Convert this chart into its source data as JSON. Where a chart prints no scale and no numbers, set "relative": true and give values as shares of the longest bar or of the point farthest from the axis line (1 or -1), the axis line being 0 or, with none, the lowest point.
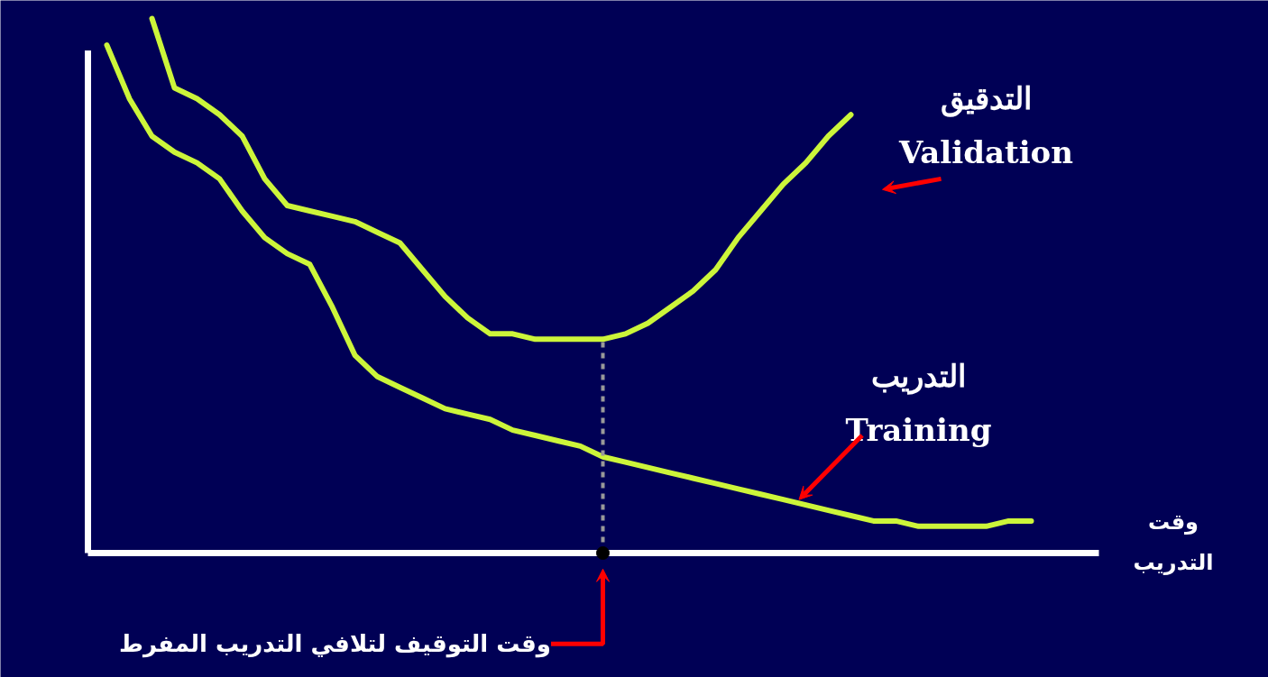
{
  "chart_data": {
    "type": "line",
    "relative": true,
    "xlabel": "وقت\nالتدريب",
    "categories": [
      null,
      null,
      null,
      null,
      null,
      null,
      null,
      null,
      null,
      null,
      null,
      null,
      null,
      null,
      null,
      null,
      null,
      null,
      null,
      null,
      null,
      null,
      null,
      null,
      null,
      null,
      null,
      null,
      null,
      null,
      null,
      null,
      null,
      null,
      null,
      null,
      null,
      null,
      null,
      null,
      null,
      null
    ],
    "series": [
      {
        "name": "التدقيق\nValidation",
        "color": "#ccf53a",
        "values": [
          null,
          null,
          1.0,
          0.87,
          0.85,
          0.82,
          0.78,
          0.7,
          0.65,
          0.64,
          0.63,
          0.62,
          0.6,
          0.58,
          0.53,
          0.48,
          0.44,
          0.41,
          0.41,
          0.4,
          0.4,
          0.4,
          0.4,
          0.41,
          0.43,
          0.46,
          0.49,
          0.53,
          0.59,
          0.64,
          0.69,
          0.73,
          0.78,
          0.82,
          null,
          null,
          null,
          null,
          null,
          null,
          null,
          null
        ]
      },
      {
        "name": "التدريب\nTraining",
        "color": "#ccf53a",
        "values": [
          0.95,
          0.85,
          0.78,
          0.75,
          0.73,
          0.7,
          0.64,
          0.59,
          0.56,
          0.54,
          0.46,
          0.37,
          0.33,
          0.31,
          0.29,
          0.27,
          0.26,
          0.25,
          0.23,
          0.22,
          0.21,
          0.2,
          0.18,
          0.17,
          0.16,
          0.15,
          0.14,
          0.13,
          0.12,
          0.11,
          0.1,
          0.09,
          0.08,
          0.07,
          0.06,
          0.06,
          0.05,
          0.05,
          0.05,
          0.05,
          0.06,
          0.06
        ]
      }
    ],
    "annotations": [
      "وقت التوقيف لتلافي التدريب المفرط"
    ],
    "grid": false,
    "marker": "none",
    "line_style": "solid"
  }
}
